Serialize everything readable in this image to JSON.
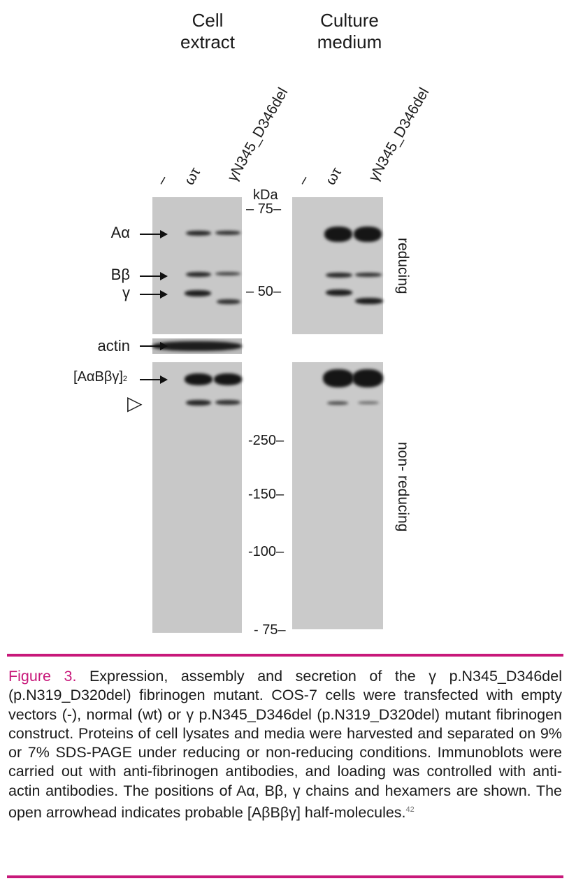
{
  "headers": {
    "cell_extract": "Cell\nextract",
    "culture_medium": "Culture\nmedium"
  },
  "lanes": {
    "empty": "–",
    "wt": "ωτ",
    "mutant": "γN345_D346del"
  },
  "kda_label": "kDa",
  "markers_reducing": [
    "75",
    "50"
  ],
  "markers_nonreducing": [
    "250",
    "150",
    "100",
    "75"
  ],
  "band_labels": {
    "a_alpha": "Aα",
    "b_beta": "Bβ",
    "gamma": "γ",
    "actin": "actin",
    "hexamer": "[AαBβγ]",
    "hexamer_sub": "2",
    "open_arrowhead": "▷"
  },
  "conditions": {
    "reducing": "reducing",
    "nonreducing": "non- reducing"
  },
  "caption": {
    "figure_label": "Figure 3.",
    "text": "Expression, assembly and secretion of the γ p.N345_D346del (p.N319_D320del) fibrinogen mutant. COS-7 cells were transfected with empty vectors (-), normal (wt) or γ p.N345_D346del (p.N319_D320del) mutant fibrinogen construct. Proteins of cell lysates and media were harvested and separated on 9% or 7% SDS-PAGE under reducing or non-reducing conditions. Immunoblots were carried out with anti-fibrinogen antibodies, and loading was controlled with anti-actin antibodies. The positions of Aα, Bβ, γ chains and hexamers are shown. The open arrowhead indicates probable [AβBβγ] half-molecules.",
    "ref": "42"
  },
  "colors": {
    "accent": "#c8187a"
  }
}
